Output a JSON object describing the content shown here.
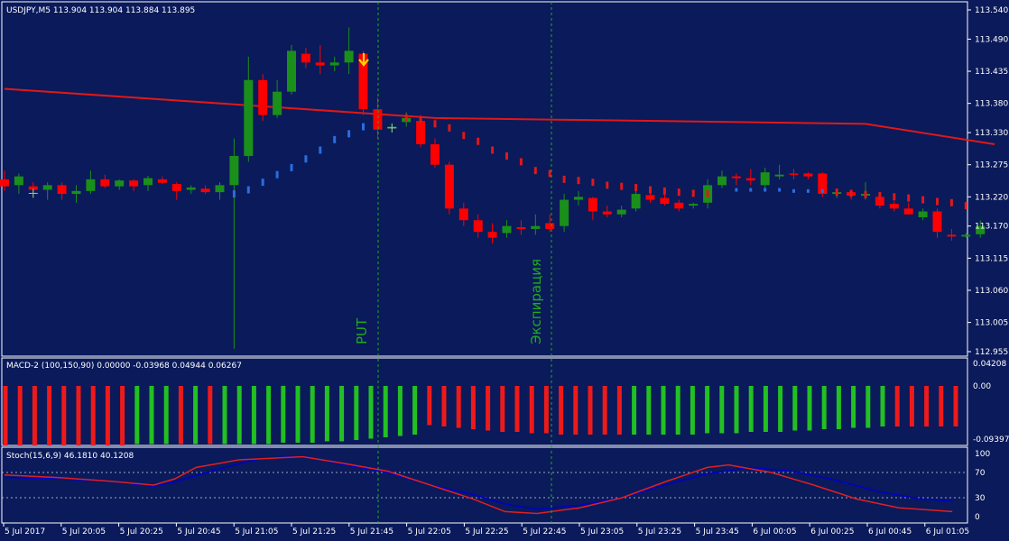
{
  "colors": {
    "background": "#0a1a5a",
    "grid_border": "#ffffff",
    "bull": "#1a8f1a",
    "bear": "#ff0000",
    "ma_line": "#e01818",
    "psar_bull": "#2a6de0",
    "psar_bear": "#e01818",
    "vline": "#1faa1f",
    "arrow": "#ffd400",
    "macd_pos": "#22c022",
    "macd_neg": "#ee1a1a",
    "stoch_main": "#0000c8",
    "stoch_signal": "#e02020"
  },
  "main": {
    "symbol_label": "USDJPY,M5  113.904 113.904 113.884 113.895",
    "price_ticks": [
      "113.540",
      "113.490",
      "113.435",
      "113.380",
      "113.330",
      "113.275",
      "113.220",
      "113.170",
      "113.115",
      "113.060",
      "113.005",
      "112.955"
    ],
    "put_label": "PUT",
    "expiration_label": "Экспирация"
  },
  "macd": {
    "label": "MACD-2 (100,150,90) 0.00000 -0.03968 0.04944 0.06267",
    "ticks": [
      "0.04208",
      "0.00",
      "-0.09397"
    ]
  },
  "stoch": {
    "label": "Stoch(15,6,9) 46.1810 40.1208",
    "ticks": [
      "100",
      "70",
      "30",
      "0"
    ]
  },
  "time_axis": [
    "5 Jul 2017",
    "5 Jul 20:05",
    "5 Jul 20:25",
    "5 Jul 20:45",
    "5 Jul 21:05",
    "5 Jul 21:25",
    "5 Jul 21:45",
    "5 Jul 22:05",
    "5 Jul 22:25",
    "5 Jul 22:45",
    "5 Jul 23:05",
    "5 Jul 23:25",
    "5 Jul 23:45",
    "6 Jul 00:05",
    "6 Jul 00:25",
    "6 Jul 00:45",
    "6 Jul 01:05"
  ],
  "chart_data": {
    "type": "candlestick",
    "ohlc": [
      [
        113.25,
        113.265,
        113.23,
        113.238
      ],
      [
        113.24,
        113.26,
        113.225,
        113.255
      ],
      [
        113.238,
        113.245,
        113.22,
        113.232
      ],
      [
        113.232,
        113.245,
        113.215,
        113.24
      ],
      [
        113.24,
        113.245,
        113.215,
        113.225
      ],
      [
        113.225,
        113.24,
        113.21,
        113.23
      ],
      [
        113.23,
        113.265,
        113.225,
        113.25
      ],
      [
        113.25,
        113.258,
        113.235,
        113.238
      ],
      [
        113.238,
        113.25,
        113.232,
        113.248
      ],
      [
        113.248,
        113.25,
        113.23,
        113.238
      ],
      [
        113.24,
        113.256,
        113.23,
        113.252
      ],
      [
        113.25,
        113.255,
        113.242,
        113.244
      ],
      [
        113.242,
        113.245,
        113.215,
        113.23
      ],
      [
        113.232,
        113.24,
        113.225,
        113.236
      ],
      [
        113.234,
        113.24,
        113.225,
        113.228
      ],
      [
        113.228,
        113.245,
        113.215,
        113.24
      ],
      [
        113.24,
        113.32,
        112.96,
        113.29
      ],
      [
        113.29,
        113.46,
        113.28,
        113.42
      ],
      [
        113.42,
        113.43,
        113.35,
        113.36
      ],
      [
        113.36,
        113.42,
        113.355,
        113.4
      ],
      [
        113.4,
        113.48,
        113.395,
        113.47
      ],
      [
        113.465,
        113.475,
        113.44,
        113.45
      ],
      [
        113.45,
        113.48,
        113.43,
        113.445
      ],
      [
        113.445,
        113.46,
        113.435,
        113.45
      ],
      [
        113.45,
        113.51,
        113.43,
        113.47
      ],
      [
        113.465,
        113.47,
        113.36,
        113.37
      ],
      [
        113.37,
        113.39,
        113.32,
        113.335
      ],
      [
        113.338,
        113.345,
        113.33,
        113.34
      ],
      [
        113.348,
        113.365,
        113.34,
        113.355
      ],
      [
        113.35,
        113.36,
        113.305,
        113.31
      ],
      [
        113.31,
        113.32,
        113.27,
        113.275
      ],
      [
        113.275,
        113.28,
        113.19,
        113.2
      ],
      [
        113.2,
        113.21,
        113.17,
        113.18
      ],
      [
        113.18,
        113.19,
        113.15,
        113.16
      ],
      [
        113.16,
        113.175,
        113.14,
        113.15
      ],
      [
        113.158,
        113.18,
        113.15,
        113.17
      ],
      [
        113.168,
        113.18,
        113.155,
        113.165
      ],
      [
        113.165,
        113.19,
        113.155,
        113.17
      ],
      [
        113.175,
        113.19,
        113.16,
        113.165
      ],
      [
        113.17,
        113.225,
        113.16,
        113.215
      ],
      [
        113.215,
        113.23,
        113.205,
        113.22
      ],
      [
        113.218,
        113.22,
        113.18,
        113.195
      ],
      [
        113.195,
        113.205,
        113.185,
        113.19
      ],
      [
        113.19,
        113.205,
        113.185,
        113.198
      ],
      [
        113.2,
        113.23,
        113.195,
        113.225
      ],
      [
        113.223,
        113.228,
        113.21,
        113.215
      ],
      [
        113.218,
        113.225,
        113.205,
        113.208
      ],
      [
        113.21,
        113.215,
        113.195,
        113.2
      ],
      [
        113.205,
        113.21,
        113.2,
        113.208
      ],
      [
        113.21,
        113.25,
        113.2,
        113.24
      ],
      [
        113.24,
        113.265,
        113.235,
        113.255
      ],
      [
        113.255,
        113.26,
        113.24,
        113.252
      ],
      [
        113.252,
        113.268,
        113.24,
        113.248
      ],
      [
        113.24,
        113.27,
        113.235,
        113.262
      ],
      [
        113.255,
        113.275,
        113.25,
        113.258
      ],
      [
        113.26,
        113.268,
        113.25,
        113.258
      ],
      [
        113.26,
        113.262,
        113.25,
        113.255
      ],
      [
        113.26,
        113.262,
        113.22,
        113.225
      ],
      [
        113.225,
        113.232,
        113.218,
        113.228
      ],
      [
        113.228,
        113.232,
        113.215,
        113.222
      ],
      [
        113.222,
        113.245,
        113.215,
        113.225
      ],
      [
        113.22,
        113.228,
        113.2,
        113.205
      ],
      [
        113.208,
        113.212,
        113.195,
        113.2
      ],
      [
        113.2,
        113.21,
        113.19,
        113.19
      ],
      [
        113.185,
        113.2,
        113.18,
        113.195
      ],
      [
        113.195,
        113.2,
        113.15,
        113.16
      ],
      [
        113.155,
        113.165,
        113.145,
        113.152
      ],
      [
        113.152,
        113.158,
        113.15,
        113.155
      ],
      [
        113.156,
        113.18,
        113.15,
        113.17
      ]
    ],
    "ma": [
      [
        0,
        113.405
      ],
      [
        30,
        113.355
      ],
      [
        60,
        113.345
      ],
      [
        69,
        113.31
      ]
    ],
    "psar_bull": [
      [
        16,
        113.225
      ],
      [
        17,
        113.232
      ],
      [
        18,
        113.245
      ],
      [
        19,
        113.258
      ],
      [
        20,
        113.27
      ],
      [
        21,
        113.285
      ],
      [
        22,
        113.3
      ],
      [
        23,
        113.318
      ],
      [
        24,
        113.328
      ],
      [
        25,
        113.34
      ]
    ],
    "psar_bear": [
      [
        28,
        113.355
      ],
      [
        29,
        113.352
      ],
      [
        30,
        113.345
      ],
      [
        31,
        113.338
      ],
      [
        32,
        113.325
      ],
      [
        33,
        113.315
      ],
      [
        34,
        113.3
      ],
      [
        35,
        113.29
      ],
      [
        36,
        113.28
      ],
      [
        37,
        113.265
      ],
      [
        38,
        113.26
      ],
      [
        39,
        113.25
      ],
      [
        40,
        113.248
      ],
      [
        41,
        113.245
      ],
      [
        42,
        113.24
      ],
      [
        43,
        113.238
      ],
      [
        44,
        113.236
      ],
      [
        45,
        113.232
      ],
      [
        46,
        113.23
      ],
      [
        47,
        113.228
      ],
      [
        48,
        113.226
      ],
      [
        49,
        113.225
      ],
      [
        58,
        113.228
      ],
      [
        59,
        113.226
      ],
      [
        60,
        113.224
      ],
      [
        61,
        113.222
      ],
      [
        62,
        113.22
      ],
      [
        63,
        113.218
      ],
      [
        64,
        113.215
      ],
      [
        65,
        113.212
      ],
      [
        66,
        113.21
      ],
      [
        67,
        113.205
      ]
    ],
    "psar_bull2": [
      [
        51,
        113.232
      ],
      [
        52,
        113.232
      ],
      [
        53,
        113.232
      ],
      [
        54,
        113.232
      ],
      [
        55,
        113.23
      ],
      [
        56,
        113.23
      ],
      [
        57,
        113.23
      ]
    ],
    "macd_hist": [
      -1,
      -1,
      -1,
      -1,
      -1,
      -1,
      -1,
      -1,
      -1,
      1,
      1,
      1,
      -1,
      1,
      -1,
      1,
      1,
      1,
      1,
      1,
      1,
      1,
      1,
      1,
      1,
      1,
      1,
      1,
      1,
      -1,
      -1,
      -1,
      -1,
      -1,
      -1,
      -1,
      -1,
      -1,
      -1,
      -1,
      -1,
      -1,
      -1,
      1,
      1,
      1,
      1,
      1,
      1,
      1,
      1,
      1,
      1,
      1,
      1,
      1,
      1,
      1,
      1,
      1,
      1,
      -1,
      -1,
      -1,
      -1,
      -1
    ],
    "macd_len": [
      0.88,
      0.88,
      0.88,
      0.88,
      0.88,
      0.88,
      0.88,
      0.88,
      0.88,
      0.86,
      0.86,
      0.86,
      0.86,
      0.86,
      0.86,
      0.86,
      0.86,
      0.86,
      0.86,
      0.84,
      0.84,
      0.84,
      0.82,
      0.82,
      0.8,
      0.78,
      0.76,
      0.74,
      0.72,
      0.58,
      0.6,
      0.62,
      0.64,
      0.66,
      0.68,
      0.68,
      0.7,
      0.7,
      0.72,
      0.72,
      0.72,
      0.72,
      0.72,
      0.72,
      0.72,
      0.72,
      0.72,
      0.72,
      0.7,
      0.7,
      0.7,
      0.68,
      0.68,
      0.68,
      0.66,
      0.66,
      0.64,
      0.64,
      0.62,
      0.62,
      0.6,
      0.6,
      0.6,
      0.6,
      0.6,
      0.6
    ],
    "stoch_main": [
      [
        0,
        62
      ],
      [
        5,
        60
      ],
      [
        10,
        56
      ],
      [
        14,
        48
      ],
      [
        16,
        55
      ],
      [
        20,
        75
      ],
      [
        24,
        92
      ],
      [
        28,
        96
      ],
      [
        32,
        82
      ],
      [
        36,
        70
      ],
      [
        40,
        50
      ],
      [
        44,
        35
      ],
      [
        47,
        20
      ],
      [
        50,
        12
      ],
      [
        54,
        18
      ],
      [
        58,
        30
      ],
      [
        62,
        50
      ],
      [
        66,
        68
      ],
      [
        70,
        78
      ],
      [
        74,
        72
      ],
      [
        78,
        58
      ],
      [
        82,
        40
      ],
      [
        86,
        28
      ],
      [
        89,
        25
      ]
    ],
    "stoch_signal": [
      [
        0,
        66
      ],
      [
        5,
        62
      ],
      [
        10,
        56
      ],
      [
        14,
        50
      ],
      [
        16,
        60
      ],
      [
        18,
        78
      ],
      [
        22,
        90
      ],
      [
        28,
        95
      ],
      [
        32,
        84
      ],
      [
        36,
        72
      ],
      [
        40,
        50
      ],
      [
        44,
        28
      ],
      [
        47,
        8
      ],
      [
        50,
        5
      ],
      [
        54,
        14
      ],
      [
        58,
        30
      ],
      [
        62,
        55
      ],
      [
        66,
        78
      ],
      [
        68,
        82
      ],
      [
        72,
        70
      ],
      [
        76,
        50
      ],
      [
        80,
        28
      ],
      [
        84,
        14
      ],
      [
        89,
        8
      ]
    ]
  }
}
